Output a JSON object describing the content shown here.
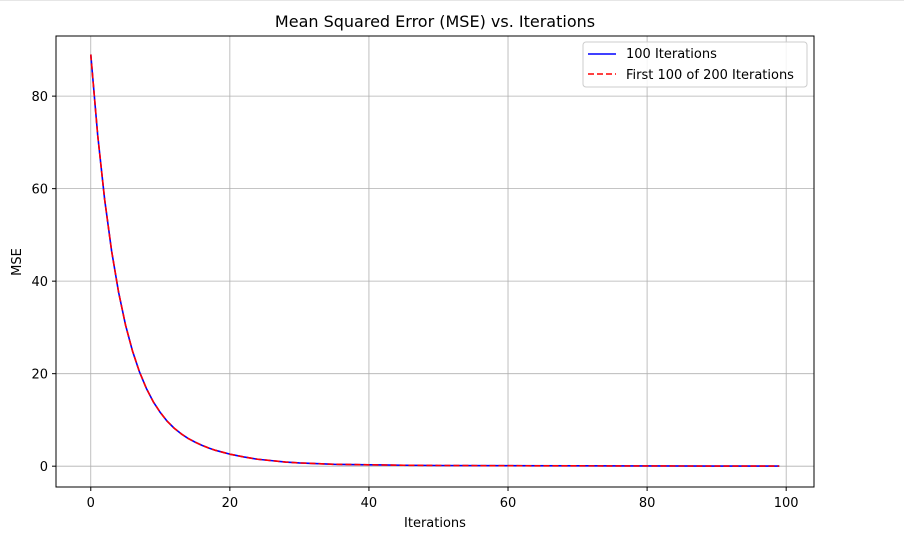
{
  "chart_data": {
    "type": "line",
    "title": "Mean Squared Error (MSE) vs. Iterations",
    "xlabel": "Iterations",
    "ylabel": "MSE",
    "xlim": [
      -5,
      104
    ],
    "ylim": [
      -4.5,
      93
    ],
    "xticks": [
      0,
      20,
      40,
      60,
      80,
      100
    ],
    "yticks": [
      0,
      20,
      40,
      60,
      80
    ],
    "grid": true,
    "legend_position": "top-right",
    "x": [
      0,
      1,
      2,
      3,
      4,
      5,
      6,
      7,
      8,
      9,
      10,
      11,
      12,
      13,
      14,
      15,
      16,
      17,
      18,
      19,
      20,
      22,
      24,
      26,
      28,
      30,
      35,
      40,
      45,
      50,
      60,
      70,
      80,
      90,
      99
    ],
    "series": [
      {
        "name": "100 Iterations",
        "color": "#0000ff",
        "style": "solid",
        "values": [
          89.0,
          71.5,
          57.6,
          46.5,
          37.6,
          30.5,
          24.9,
          20.4,
          16.8,
          13.9,
          11.6,
          9.7,
          8.2,
          7.0,
          6.0,
          5.2,
          4.5,
          3.9,
          3.4,
          3.0,
          2.6,
          2.0,
          1.5,
          1.2,
          0.9,
          0.7,
          0.4,
          0.3,
          0.2,
          0.15,
          0.1,
          0.07,
          0.05,
          0.03,
          0.02
        ]
      },
      {
        "name": "First 100 of 200 Iterations",
        "color": "#ff0000",
        "style": "dashed",
        "values": [
          89.0,
          71.5,
          57.6,
          46.5,
          37.6,
          30.5,
          24.9,
          20.4,
          16.8,
          13.9,
          11.6,
          9.7,
          8.2,
          7.0,
          6.0,
          5.2,
          4.5,
          3.9,
          3.4,
          3.0,
          2.6,
          2.0,
          1.5,
          1.2,
          0.9,
          0.7,
          0.4,
          0.3,
          0.2,
          0.15,
          0.1,
          0.07,
          0.05,
          0.03,
          0.02
        ]
      }
    ]
  }
}
